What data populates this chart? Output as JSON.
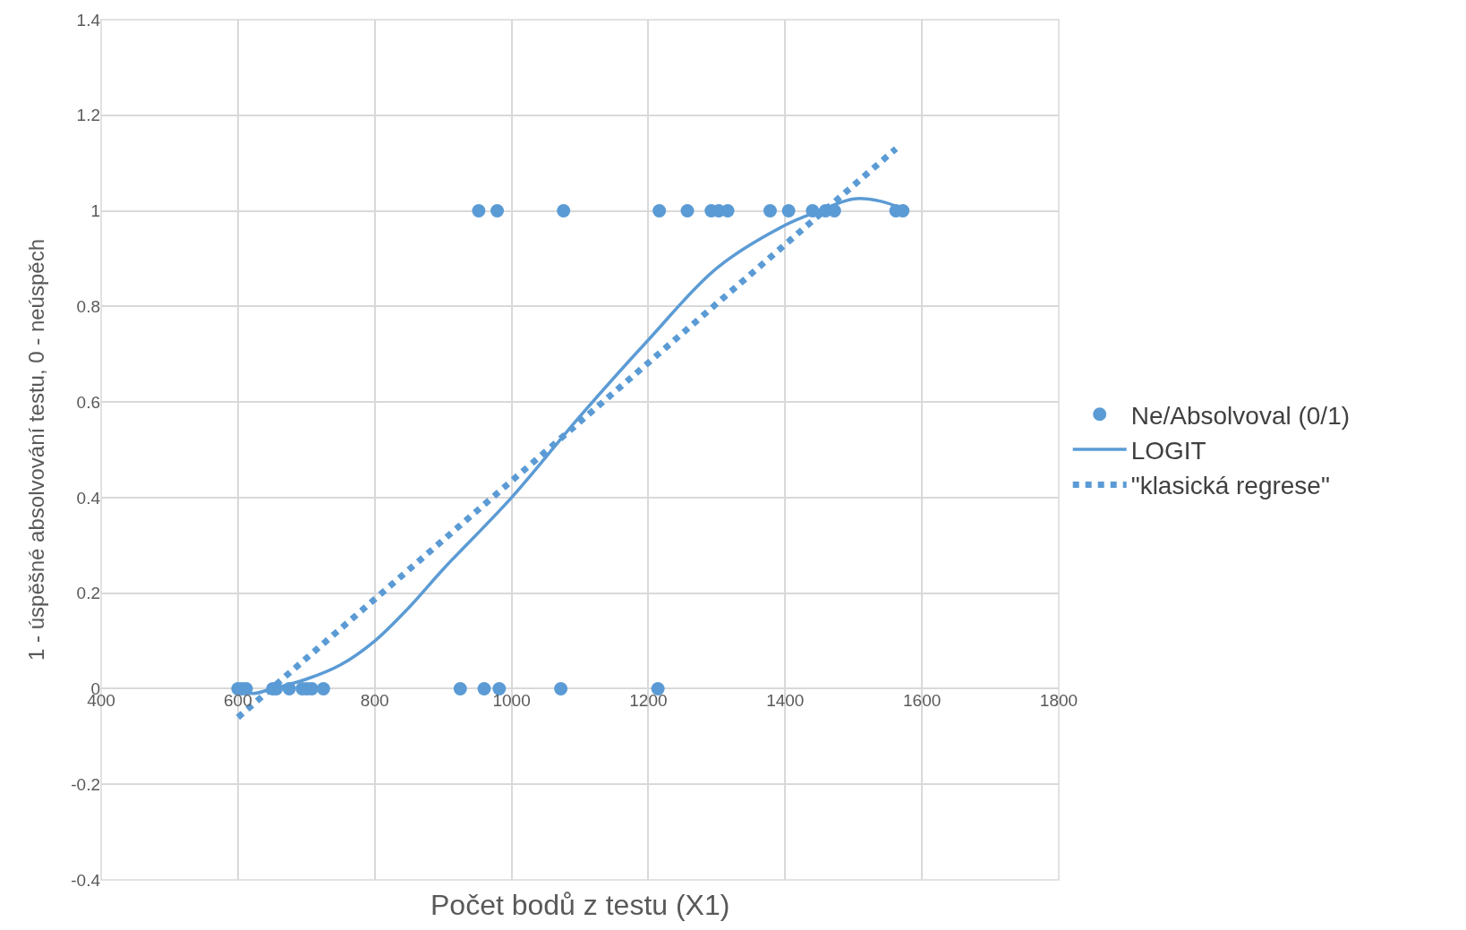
{
  "chart_data": {
    "type": "scatter",
    "xlabel": "Počet bodů z testu (X1)",
    "ylabel": "1 - úspěšné absolvování testu, 0 - neúspěch",
    "xlim": [
      400,
      1800
    ],
    "xticks": [
      400,
      600,
      800,
      1000,
      1200,
      1400,
      1600,
      1800
    ],
    "ylim": [
      -0.4,
      1.4
    ],
    "yticks": [
      -0.4,
      -0.2,
      0,
      0.2,
      0.4,
      0.6,
      0.8,
      1,
      1.2,
      1.4
    ],
    "grid": true,
    "legend": "right",
    "series": [
      {
        "name": "Ne/Absolvoval (0/1)",
        "marker": "circle",
        "color": "#5b9bd5",
        "x": [
          600,
          606,
          612,
          651,
          656,
          675,
          694,
          701,
          708,
          725,
          925,
          960,
          982,
          1072,
          1214,
          952,
          979,
          1076,
          1216,
          1257,
          1292,
          1303,
          1316,
          1378,
          1405,
          1440,
          1459,
          1472,
          1562,
          1572
        ],
        "values": [
          0,
          0,
          0,
          0,
          0,
          0,
          0,
          0,
          0,
          0,
          0,
          0,
          0,
          0,
          0,
          1,
          1,
          1,
          1,
          1,
          1,
          1,
          1,
          1,
          1,
          1,
          1,
          1,
          1,
          1
        ]
      },
      {
        "name": "LOGIT",
        "type": "line",
        "line_style": "solid",
        "color": "#5b9bd5",
        "x": [
          600,
          620,
          650,
          700,
          750,
          800,
          850,
          900,
          1000,
          1100,
          1200,
          1300,
          1400,
          1450,
          1500,
          1540,
          1570
        ],
        "values": [
          0,
          -0.01,
          0,
          0.02,
          0.05,
          0.1,
          0.17,
          0.25,
          0.4,
          0.57,
          0.73,
          0.88,
          0.97,
          1.0,
          1.025,
          1.02,
          1.005
        ]
      },
      {
        "name": "\"klasická regrese\"",
        "type": "line",
        "line_style": "dotted",
        "color": "#5b9bd5",
        "x": [
          600,
          1562
        ],
        "values": [
          -0.06,
          1.13
        ]
      }
    ]
  }
}
